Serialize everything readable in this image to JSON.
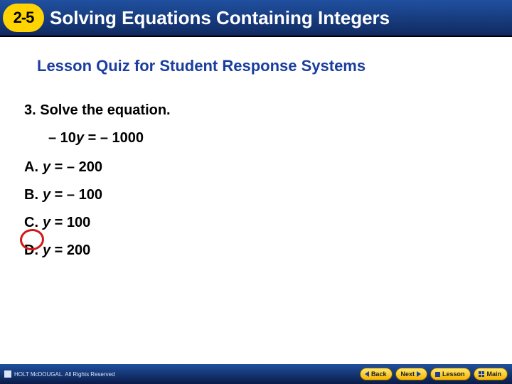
{
  "header": {
    "badge": "2-5",
    "title": "Solving Equations Containing Integers"
  },
  "subtitle": "Lesson Quiz for Student Response Systems",
  "question": {
    "number": "3.",
    "prompt": "Solve the equation.",
    "equation_prefix": "– 10",
    "equation_var": "y",
    "equation_suffix": " = – 1000"
  },
  "choices": [
    {
      "label": "A.",
      "var": "y",
      "rhs": " = – 200",
      "correct": false
    },
    {
      "label": "B.",
      "var": "y",
      "rhs": " = – 100",
      "correct": false
    },
    {
      "label": "C.",
      "var": "y",
      "rhs": " = 100",
      "correct": true
    },
    {
      "label": "D.",
      "var": "y",
      "rhs": " = 200",
      "correct": false
    }
  ],
  "footer": {
    "copyright": "HOLT McDOUGAL. All Rights Reserved",
    "nav": {
      "back": "Back",
      "next": "Next",
      "lesson": "Lesson",
      "main": "Main"
    }
  },
  "colors": {
    "header_gradient_top": "#2050a0",
    "header_gradient_bottom": "#102a60",
    "badge_bg": "#ffd400",
    "subtitle": "#1a3ea0",
    "circle": "#d01818",
    "nav_btn_top": "#ffe870",
    "nav_btn_bottom": "#f5b500"
  }
}
